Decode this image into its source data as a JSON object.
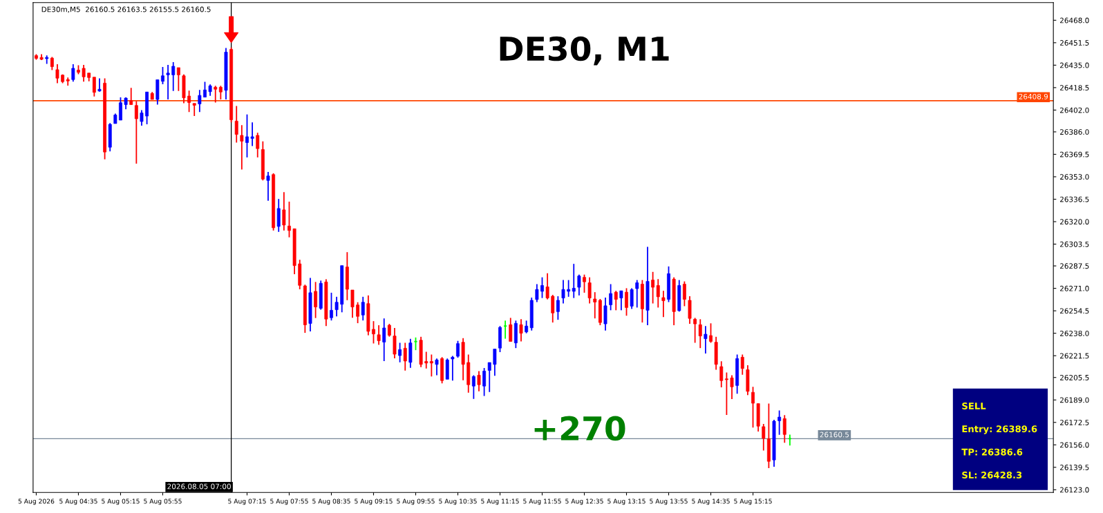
{
  "chart_data": {
    "type": "candlestick",
    "title": "DE30, M1",
    "annotations": [
      "DE30m,M5  26160.5 26163.5 26155.5 26160.5",
      "+270",
      "SELL",
      "Entry: 26389.6",
      "TP: 26386.6",
      "SL: 26428.3"
    ],
    "x": [
      "2026-08-05T03:55",
      "2026-08-05T04:00",
      "2026-08-05T04:05",
      "2026-08-05T04:10",
      "2026-08-05T04:15",
      "2026-08-05T04:20",
      "2026-08-05T04:25",
      "2026-08-05T04:30",
      "2026-08-05T04:35",
      "2026-08-05T04:40",
      "2026-08-05T04:45",
      "2026-08-05T04:50",
      "2026-08-05T04:55",
      "2026-08-05T05:00",
      "2026-08-05T05:05",
      "2026-08-05T05:10",
      "2026-08-05T05:15",
      "2026-08-05T05:20",
      "2026-08-05T05:25",
      "2026-08-05T05:30",
      "2026-08-05T05:35",
      "2026-08-05T05:40",
      "2026-08-05T05:45",
      "2026-08-05T05:50",
      "2026-08-05T05:55",
      "2026-08-05T06:00",
      "2026-08-05T06:05",
      "2026-08-05T06:10",
      "2026-08-05T06:15",
      "2026-08-05T06:20",
      "2026-08-05T06:25",
      "2026-08-05T06:30",
      "2026-08-05T06:35",
      "2026-08-05T06:40",
      "2026-08-05T06:45",
      "2026-08-05T06:50",
      "2026-08-05T06:55",
      "2026-08-05T07:00",
      "2026-08-05T07:05",
      "2026-08-05T07:10",
      "2026-08-05T07:15",
      "2026-08-05T07:20",
      "2026-08-05T07:25",
      "2026-08-05T07:30",
      "2026-08-05T07:35",
      "2026-08-05T07:40",
      "2026-08-05T07:45",
      "2026-08-05T07:50",
      "2026-08-05T07:55",
      "2026-08-05T08:00",
      "2026-08-05T08:05",
      "2026-08-05T08:10",
      "2026-08-05T08:15",
      "2026-08-05T08:20",
      "2026-08-05T08:25",
      "2026-08-05T08:30",
      "2026-08-05T08:35",
      "2026-08-05T08:40",
      "2026-08-05T08:45",
      "2026-08-05T08:50",
      "2026-08-05T08:55",
      "2026-08-05T09:00",
      "2026-08-05T09:05",
      "2026-08-05T09:10",
      "2026-08-05T09:15",
      "2026-08-05T09:20",
      "2026-08-05T09:25",
      "2026-08-05T09:30",
      "2026-08-05T09:35",
      "2026-08-05T09:40",
      "2026-08-05T09:45",
      "2026-08-05T09:50",
      "2026-08-05T09:55",
      "2026-08-05T10:00",
      "2026-08-05T10:05",
      "2026-08-05T10:10",
      "2026-08-05T10:15",
      "2026-08-05T10:20",
      "2026-08-05T10:25",
      "2026-08-05T10:30",
      "2026-08-05T10:35",
      "2026-08-05T10:40",
      "2026-08-05T10:45",
      "2026-08-05T10:50",
      "2026-08-05T10:55",
      "2026-08-05T11:00",
      "2026-08-05T11:05",
      "2026-08-05T11:10",
      "2026-08-05T11:15",
      "2026-08-05T11:20",
      "2026-08-05T11:25",
      "2026-08-05T11:30",
      "2026-08-05T11:35",
      "2026-08-05T11:40",
      "2026-08-05T11:45",
      "2026-08-05T11:50",
      "2026-08-05T11:55",
      "2026-08-05T12:00",
      "2026-08-05T12:05",
      "2026-08-05T12:10",
      "2026-08-05T12:15",
      "2026-08-05T12:20",
      "2026-08-05T12:25",
      "2026-08-05T12:30",
      "2026-08-05T12:35",
      "2026-08-05T12:40",
      "2026-08-05T12:45",
      "2026-08-05T12:50",
      "2026-08-05T12:55",
      "2026-08-05T13:00",
      "2026-08-05T13:05",
      "2026-08-05T13:10",
      "2026-08-05T13:15",
      "2026-08-05T13:20",
      "2026-08-05T13:25",
      "2026-08-05T13:30",
      "2026-08-05T13:35",
      "2026-08-05T13:40",
      "2026-08-05T13:45",
      "2026-08-05T13:50",
      "2026-08-05T13:55",
      "2026-08-05T14:00",
      "2026-08-05T14:05",
      "2026-08-05T14:10",
      "2026-08-05T14:15",
      "2026-08-05T14:20",
      "2026-08-05T14:25",
      "2026-08-05T14:30",
      "2026-08-05T14:35",
      "2026-08-05T14:40",
      "2026-08-05T14:45",
      "2026-08-05T14:50",
      "2026-08-05T14:55",
      "2026-08-05T15:00",
      "2026-08-05T15:05",
      "2026-08-05T15:10",
      "2026-08-05T15:15",
      "2026-08-05T15:20",
      "2026-08-05T15:25",
      "2026-08-05T15:30",
      "2026-08-05T15:35",
      "2026-08-05T15:40",
      "2026-08-05T15:45",
      "2026-08-05T15:50"
    ],
    "ohlc": [
      [
        26442,
        26443,
        26439,
        26440
      ],
      [
        26440.7,
        26443,
        26438.8,
        26439.3
      ],
      [
        26439.8,
        26442.2,
        26435.9,
        26440.7
      ],
      [
        26440.2,
        26441,
        26431.4,
        26433.9
      ],
      [
        26431.7,
        26435.7,
        26421.8,
        26425.4
      ],
      [
        26427.7,
        26428.2,
        26421.8,
        26422.9
      ],
      [
        26424.4,
        26425.9,
        26420,
        26423.4
      ],
      [
        26424.4,
        26435.7,
        26422.9,
        26432.7
      ],
      [
        26431.4,
        26434.9,
        26428.4,
        26429.7
      ],
      [
        26432.7,
        26435.2,
        26422.9,
        26426.4
      ],
      [
        26429.2,
        26429.2,
        26423.1,
        26425.9
      ],
      [
        26426.2,
        26426.2,
        26412,
        26415
      ],
      [
        26416,
        26425.3,
        26415.5,
        26417.3
      ],
      [
        26421.8,
        26425.3,
        26365.8,
        26371.2
      ],
      [
        26374.7,
        26392.4,
        26371.7,
        26391.5
      ],
      [
        26392.1,
        26399.4,
        26392.1,
        26398.4
      ],
      [
        26394.6,
        26411.3,
        26394.6,
        26407.4
      ],
      [
        26406,
        26411.3,
        26402.6,
        26410.8
      ],
      [
        26408.9,
        26418.3,
        26406,
        26406
      ],
      [
        26405.4,
        26408.5,
        26362.6,
        26395.6
      ],
      [
        26393.6,
        26401.9,
        26390.6,
        26399.9
      ],
      [
        26397.6,
        26415.3,
        26391.6,
        26415.3
      ],
      [
        26414.3,
        26415.3,
        26409.8,
        26409.8
      ],
      [
        26409.8,
        26424.3,
        26406,
        26424.3
      ],
      [
        26423.1,
        26433.7,
        26421,
        26427.2
      ],
      [
        26427.9,
        26435.2,
        26409.8,
        26429.2
      ],
      [
        26427.9,
        26437.2,
        26416,
        26434.2
      ],
      [
        26433.2,
        26433.2,
        26416,
        26427.9
      ],
      [
        26427.2,
        26428.2,
        26407,
        26411
      ],
      [
        26412.3,
        26416.3,
        26400.6,
        26407.5
      ],
      [
        26406.9,
        26406.9,
        26397.6,
        26405.5
      ],
      [
        26406.5,
        26416.8,
        26400.6,
        26412.8
      ],
      [
        26411.5,
        26422.8,
        26411.5,
        26416.8
      ],
      [
        26415.5,
        26420.8,
        26412.5,
        26419.8
      ],
      [
        26418.8,
        26419.8,
        26407.5,
        26417.3
      ],
      [
        26418.8,
        26419.8,
        26409.8,
        26415.3
      ],
      [
        26416.5,
        26447.6,
        26409.8,
        26444.6
      ],
      [
        26446.6,
        26448,
        26393,
        26394.9
      ],
      [
        26393.9,
        26405,
        26378.1,
        26384.1
      ],
      [
        26383.4,
        26390.9,
        26358.3,
        26379.1
      ],
      [
        26378.1,
        26398.8,
        26367.2,
        26382.4
      ],
      [
        26381.1,
        26392.9,
        26375.6,
        26382.4
      ],
      [
        26383.4,
        26385.4,
        26367.2,
        26373.7
      ],
      [
        26373,
        26379,
        26350.3,
        26351.3
      ],
      [
        26350.3,
        26356.6,
        26335.4,
        26353.6
      ],
      [
        26354.6,
        26355.6,
        26313.5,
        26315.5
      ],
      [
        26316.5,
        26336.7,
        26312.5,
        26329.7
      ],
      [
        26328.7,
        26341.7,
        26313.5,
        26317.5
      ],
      [
        26316.8,
        26334.7,
        26308.5,
        26313.5
      ],
      [
        26314.8,
        26314.8,
        26281.4,
        26287.7
      ],
      [
        26289,
        26292,
        26270.3,
        26273.2
      ],
      [
        26272.8,
        26273.7,
        26238.3,
        26244.2
      ],
      [
        26245.2,
        26278.7,
        26239.3,
        26267.8
      ],
      [
        26268.8,
        26275.7,
        26249.2,
        26257.3
      ],
      [
        26256.3,
        26276.7,
        26255.3,
        26274.7
      ],
      [
        26275.7,
        26277.7,
        26243.3,
        26248.4
      ],
      [
        26249.4,
        26267.8,
        26247.4,
        26254.9
      ],
      [
        26255.3,
        26264.8,
        26250.4,
        26260.8
      ],
      [
        26259.3,
        26287.7,
        26253.4,
        26287.7
      ],
      [
        26286.7,
        26297.6,
        26262.3,
        26270.3
      ],
      [
        26269.8,
        26269.8,
        26249.4,
        26257.3
      ],
      [
        26258.8,
        26260.8,
        26245.4,
        26250.4
      ],
      [
        26251.4,
        26264.8,
        26247.4,
        26260.8
      ],
      [
        26259.8,
        26265.8,
        26236.5,
        26239.4
      ],
      [
        26240.9,
        26246.9,
        26230.5,
        26237.5
      ],
      [
        26236.9,
        26243.9,
        26229.5,
        26232.5
      ],
      [
        26231.5,
        26248.9,
        26217.6,
        26241.9
      ],
      [
        26243.9,
        26244.9,
        26235.5,
        26236.5
      ],
      [
        26236,
        26241.9,
        26219.6,
        26222.6
      ],
      [
        26221.6,
        26231,
        26216.6,
        26226
      ],
      [
        26227,
        26231,
        26210.6,
        26217.6
      ],
      [
        26216.6,
        26233.9,
        26212.6,
        26230.9
      ],
      [
        26231.9,
        26234.9,
        26225.6,
        26231.9
      ],
      [
        26232.9,
        26235.4,
        26213.1,
        26215.1
      ],
      [
        26217.3,
        26224.4,
        26212.1,
        26216.1
      ],
      [
        26217.3,
        26222.4,
        26206.2,
        26216.1
      ],
      [
        26215.1,
        26219.4,
        26207.2,
        26218.4
      ],
      [
        26219.4,
        26220.4,
        26201.2,
        26203.2
      ],
      [
        26204.2,
        26219.4,
        26204.2,
        26218.4
      ],
      [
        26219.1,
        26221.4,
        26203.2,
        26220.4
      ],
      [
        26221.1,
        26232.4,
        26220.1,
        26230.4
      ],
      [
        26231.4,
        26234.4,
        26203.5,
        26215.1
      ],
      [
        26216.5,
        26222.4,
        26194.3,
        26200.2
      ],
      [
        26199.2,
        26207.2,
        26189.8,
        26206.2
      ],
      [
        26207.2,
        26210.2,
        26195.3,
        26200.2
      ],
      [
        26199.2,
        26212.5,
        26191.9,
        26210.2
      ],
      [
        26210.7,
        26216.5,
        26194.8,
        26216.5
      ],
      [
        26215.1,
        26226.4,
        26206.7,
        26226.4
      ],
      [
        26227.1,
        26243.3,
        26224.1,
        26242.3
      ],
      [
        26243.3,
        26247.3,
        26234,
        26243.3
      ],
      [
        26244.3,
        26249.3,
        26232,
        26232
      ],
      [
        26230.9,
        26247.3,
        26227.1,
        26245.3
      ],
      [
        26244.3,
        26248.3,
        26232,
        26238
      ],
      [
        26239,
        26247.3,
        26238,
        26243.3
      ],
      [
        26242,
        26264.2,
        26240,
        26262.2
      ],
      [
        26262.8,
        26274.1,
        26260.9,
        26270.2
      ],
      [
        26268.8,
        26279.1,
        26263.9,
        26273.1
      ],
      [
        26272.1,
        26282.1,
        26262.9,
        26263.9
      ],
      [
        26265.2,
        26266.2,
        26245.9,
        26252.9
      ],
      [
        26253.9,
        26265.2,
        26247.9,
        26262.2
      ],
      [
        26263.9,
        26277.1,
        26259.9,
        26270.2
      ],
      [
        26268.8,
        26277.1,
        26264.8,
        26270.2
      ],
      [
        26268.8,
        26289,
        26263.9,
        26271.1
      ],
      [
        26271.8,
        26281.1,
        26265.8,
        26280.1
      ],
      [
        26279.1,
        26281.1,
        26267.8,
        26275.8
      ],
      [
        26275.1,
        26279.1,
        26259.9,
        26263.9
      ],
      [
        26263.2,
        26268.2,
        26248.9,
        26260.9
      ],
      [
        26262.2,
        26263.2,
        26243.9,
        26245.9
      ],
      [
        26244.9,
        26264.2,
        26240,
        26258.2
      ],
      [
        26258.9,
        26274.1,
        26254.9,
        26267.2
      ],
      [
        26268.2,
        26269.2,
        26254.9,
        26262.9
      ],
      [
        26263.9,
        26269.2,
        26254.9,
        26269.2
      ],
      [
        26268.2,
        26271.1,
        26250.9,
        26256.9
      ],
      [
        26257.9,
        26271.1,
        26255.9,
        26270.1
      ],
      [
        26270.8,
        26277.1,
        26256.9,
        26275.1
      ],
      [
        26274.1,
        26277.1,
        26245.9,
        26255.9
      ],
      [
        26254.9,
        26301.5,
        26243.9,
        26276.1
      ],
      [
        26277.1,
        26283.1,
        26259.9,
        26271.8
      ],
      [
        26273.1,
        26277.8,
        26256.9,
        26264.8
      ],
      [
        26264.2,
        26269.2,
        26249.9,
        26261.9
      ],
      [
        26262.9,
        26287.1,
        26260.9,
        26281.8
      ],
      [
        26277.8,
        26279.1,
        26243.9,
        26253.9
      ],
      [
        26254.6,
        26277.1,
        26253.9,
        26273.1
      ],
      [
        26274.1,
        26276.1,
        26257.9,
        26262.9
      ],
      [
        26262.2,
        26265.2,
        26244.9,
        26248.9
      ],
      [
        26248.3,
        26249.3,
        26231,
        26244.9
      ],
      [
        26244.3,
        26248.3,
        26227.1,
        26236
      ],
      [
        26234,
        26243.3,
        26223.1,
        26237.3
      ],
      [
        26236.3,
        26245.3,
        26231,
        26232
      ],
      [
        26231.4,
        26235.4,
        26211.2,
        26215.1
      ],
      [
        26213.5,
        26217.4,
        26198.2,
        26203.2
      ],
      [
        26204.5,
        26209.2,
        26178,
        26203.9
      ],
      [
        26205.2,
        26207.2,
        26189.6,
        26198.6
      ],
      [
        26199.6,
        26222.4,
        26193.6,
        26219.4
      ],
      [
        26220.4,
        26222.4,
        26207.5,
        26212.1
      ],
      [
        26211.2,
        26214.5,
        26192.6,
        26195.3
      ],
      [
        26194.6,
        26198.6,
        26168.7,
        26186.6
      ],
      [
        26186.3,
        26186.3,
        26165.8,
        26169.7
      ],
      [
        26169.4,
        26171.4,
        26151.8,
        26160.8
      ],
      [
        26160.4,
        26186.3,
        26138.9,
        26143.9
      ],
      [
        26144.9,
        26174.4,
        26139.9,
        26173.4
      ],
      [
        26173.7,
        26181.3,
        26163.4,
        26176.4
      ],
      [
        26175.3,
        26177.8,
        26157.6,
        26163.6
      ],
      [
        26160.5,
        26163.5,
        26155.5,
        26160.5
      ]
    ],
    "colors": [
      "#ff0000",
      "#ff0000",
      "#0000ff",
      "#ff0000",
      "#ff0000",
      "#ff0000",
      "#ff0000",
      "#0000ff",
      "#ff0000",
      "#ff0000",
      "#ff0000",
      "#ff0000",
      "#0000ff",
      "#ff0000",
      "#0000ff",
      "#0000ff",
      "#0000ff",
      "#0000ff",
      "#ff0000",
      "#ff0000",
      "#0000ff",
      "#0000ff",
      "#ff0000",
      "#0000ff",
      "#0000ff",
      "#0000ff",
      "#0000ff",
      "#ff0000",
      "#ff0000",
      "#ff0000",
      "#ff0000",
      "#0000ff",
      "#0000ff",
      "#0000ff",
      "#ff0000",
      "#ff0000",
      "#0000ff",
      "#ff0000",
      "#ff0000",
      "#ff0000",
      "#0000ff",
      "#0000ff",
      "#ff0000",
      "#ff0000",
      "#0000ff",
      "#ff0000",
      "#0000ff",
      "#ff0000",
      "#ff0000",
      "#ff0000",
      "#ff0000",
      "#ff0000",
      "#0000ff",
      "#ff0000",
      "#0000ff",
      "#ff0000",
      "#0000ff",
      "#0000ff",
      "#0000ff",
      "#ff0000",
      "#ff0000",
      "#ff0000",
      "#0000ff",
      "#ff0000",
      "#ff0000",
      "#ff0000",
      "#0000ff",
      "#ff0000",
      "#ff0000",
      "#0000ff",
      "#ff0000",
      "#0000ff",
      "#00ff00",
      "#ff0000",
      "#ff0000",
      "#ff0000",
      "#0000ff",
      "#ff0000",
      "#0000ff",
      "#0000ff",
      "#0000ff",
      "#ff0000",
      "#ff0000",
      "#0000ff",
      "#ff0000",
      "#0000ff",
      "#0000ff",
      "#0000ff",
      "#0000ff",
      "#00ff00",
      "#ff0000",
      "#0000ff",
      "#ff0000",
      "#0000ff",
      "#0000ff",
      "#0000ff",
      "#0000ff",
      "#ff0000",
      "#ff0000",
      "#0000ff",
      "#0000ff",
      "#0000ff",
      "#0000ff",
      "#0000ff",
      "#ff0000",
      "#ff0000",
      "#ff0000",
      "#ff0000",
      "#0000ff",
      "#0000ff",
      "#ff0000",
      "#0000ff",
      "#ff0000",
      "#0000ff",
      "#0000ff",
      "#ff0000",
      "#0000ff",
      "#ff0000",
      "#ff0000",
      "#ff0000",
      "#0000ff",
      "#ff0000",
      "#0000ff",
      "#ff0000",
      "#ff0000",
      "#ff0000",
      "#ff0000",
      "#0000ff",
      "#ff0000",
      "#ff0000",
      "#ff0000",
      "#ff0000",
      "#ff0000",
      "#0000ff",
      "#ff0000",
      "#ff0000",
      "#ff0000",
      "#ff0000",
      "#ff0000",
      "#ff0000",
      "#0000ff",
      "#0000ff",
      "#ff0000",
      "#00ff00"
    ],
    "xlim": [
      "2026-08-05T03:52",
      "2026-08-05T20:00"
    ],
    "xticks": [
      {
        "value": "2026-08-05T03:55",
        "label": "5 Aug 2026"
      },
      {
        "value": "2026-08-05T04:35",
        "label": "5 Aug 04:35"
      },
      {
        "value": "2026-08-05T05:15",
        "label": "5 Aug 05:15"
      },
      {
        "value": "2026-08-05T05:55",
        "label": "5 Aug 05:55"
      },
      {
        "value": "2026-08-05T07:15",
        "label": "5 Aug 07:15"
      },
      {
        "value": "2026-08-05T07:55",
        "label": "5 Aug 07:55"
      },
      {
        "value": "2026-08-05T08:35",
        "label": "5 Aug 08:35"
      },
      {
        "value": "2026-08-05T09:15",
        "label": "5 Aug 09:15"
      },
      {
        "value": "2026-08-05T09:55",
        "label": "5 Aug 09:55"
      },
      {
        "value": "2026-08-05T10:35",
        "label": "5 Aug 10:35"
      },
      {
        "value": "2026-08-05T11:15",
        "label": "5 Aug 11:15"
      },
      {
        "value": "2026-08-05T11:55",
        "label": "5 Aug 11:55"
      },
      {
        "value": "2026-08-05T12:35",
        "label": "5 Aug 12:35"
      },
      {
        "value": "2026-08-05T13:15",
        "label": "5 Aug 13:15"
      },
      {
        "value": "2026-08-05T13:55",
        "label": "5 Aug 13:55"
      },
      {
        "value": "2026-08-05T14:35",
        "label": "5 Aug 14:35"
      },
      {
        "value": "2026-08-05T15:15",
        "label": "5 Aug 15:15"
      }
    ],
    "ylim": [
      26121,
      26481
    ],
    "yticks": [
      {
        "value": 26123,
        "label": "26123.0"
      },
      26139.5,
      {
        "value": 26156,
        "label": "26156.0"
      },
      26172.5,
      {
        "value": 26189,
        "label": "26189.0"
      },
      26205.5,
      26221.5,
      {
        "value": 26238,
        "label": "26238.0"
      },
      26254.5,
      {
        "value": 26271,
        "label": "26271.0"
      },
      26287.5,
      26303.5,
      {
        "value": 26320,
        "label": "26320.0"
      },
      26336.5,
      {
        "value": 26353,
        "label": "26353.0"
      },
      26369.5,
      {
        "value": 26386,
        "label": "26386.0"
      },
      {
        "value": 26402,
        "label": "26402.0"
      },
      26418.5,
      {
        "value": 26435,
        "label": "26435.0"
      },
      26451.5,
      {
        "value": 26468,
        "label": "26468.0"
      }
    ],
    "ref_lines": [
      {
        "axis": "y",
        "value": 26408.9,
        "label": "26408.9",
        "color": "#ff4500"
      },
      {
        "axis": "y",
        "value": 26160.5,
        "label": "26160.5",
        "color": "#778899"
      },
      {
        "axis": "x",
        "value": "2026-08-05T07:00",
        "label": "2026.08.05 07:00",
        "color": "#000000"
      }
    ],
    "grid": false
  }
}
